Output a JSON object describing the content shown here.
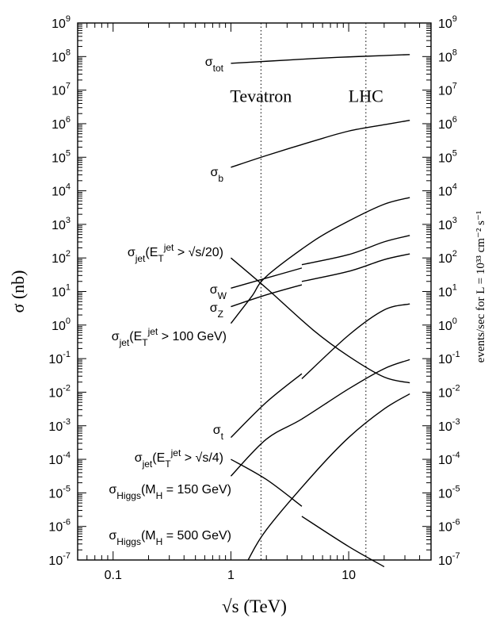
{
  "chart_data": {
    "type": "line",
    "xlabel": "√s   (TeV)",
    "ylabel_left": "σ  (nb)",
    "ylabel_right": "events/sec  for  L = 10³³ cm⁻² s⁻¹",
    "x_scale": "log",
    "y_scale": "log",
    "xlim": [
      0.05,
      50
    ],
    "ylim_exponent": [
      -7,
      9
    ],
    "x_ticks": [
      {
        "value": 0.1,
        "label": "0.1"
      },
      {
        "value": 1,
        "label": "1"
      },
      {
        "value": 10,
        "label": "10"
      }
    ],
    "y_ticks": [
      {
        "exp": 9,
        "base": "10",
        "sup": "9"
      },
      {
        "exp": 8,
        "base": "10",
        "sup": "8"
      },
      {
        "exp": 7,
        "base": "10",
        "sup": "7"
      },
      {
        "exp": 6,
        "base": "10",
        "sup": "6"
      },
      {
        "exp": 5,
        "base": "10",
        "sup": "5"
      },
      {
        "exp": 4,
        "base": "10",
        "sup": "4"
      },
      {
        "exp": 3,
        "base": "10",
        "sup": "3"
      },
      {
        "exp": 2,
        "base": "10",
        "sup": "2"
      },
      {
        "exp": 1,
        "base": "10",
        "sup": "1"
      },
      {
        "exp": 0,
        "base": "10",
        "sup": "0"
      },
      {
        "exp": -1,
        "base": "10",
        "sup": "-1"
      },
      {
        "exp": -2,
        "base": "10",
        "sup": "-2"
      },
      {
        "exp": -3,
        "base": "10",
        "sup": "-3"
      },
      {
        "exp": -4,
        "base": "10",
        "sup": "-4"
      },
      {
        "exp": -5,
        "base": "10",
        "sup": "-5"
      },
      {
        "exp": -6,
        "base": "10",
        "sup": "-6"
      },
      {
        "exp": -7,
        "base": "10",
        "sup": "-7"
      }
    ],
    "vlines": [
      {
        "x": 1.8,
        "label": "Tevatron"
      },
      {
        "x": 14,
        "label": "LHC"
      }
    ],
    "series": [
      {
        "label": [
          {
            "t": "σ"
          },
          {
            "t": "tot",
            "sub": true
          }
        ],
        "segments": [
          [
            [
              1,
              7.8
            ],
            [
              2,
              7.86
            ],
            [
              5,
              7.94
            ],
            [
              10,
              7.99
            ],
            [
              20,
              8.03
            ],
            [
              33,
              8.06
            ]
          ]
        ]
      },
      {
        "label": [
          {
            "t": "σ"
          },
          {
            "t": "b",
            "sub": true
          }
        ],
        "segments": [
          [
            [
              1,
              4.7
            ],
            [
              2,
              5.05
            ],
            [
              5,
              5.48
            ],
            [
              10,
              5.78
            ],
            [
              20,
              5.97
            ],
            [
              33,
              6.1
            ]
          ]
        ]
      },
      {
        "label": [
          {
            "t": "σ"
          },
          {
            "t": "jet",
            "sub": true
          },
          {
            "t": "(E"
          },
          {
            "t": "T",
            "sub": true
          },
          {
            "t": "jet",
            "sup": true
          },
          {
            "t": " > √s/20)"
          }
        ],
        "segments": [
          [
            [
              1,
              2.0
            ],
            [
              2,
              1.1
            ],
            [
              5,
              -0.15
            ],
            [
              10,
              -0.93
            ],
            [
              20,
              -1.55
            ],
            [
              33,
              -1.72
            ]
          ]
        ]
      },
      {
        "label": [
          {
            "t": "σ"
          },
          {
            "t": "W",
            "sub": true
          }
        ],
        "segments": [
          [
            [
              1,
              1.1
            ],
            [
              2,
              1.4
            ],
            [
              4,
              1.7
            ]
          ],
          [
            [
              4,
              1.8
            ],
            [
              10,
              2.1
            ],
            [
              20,
              2.48
            ],
            [
              33,
              2.67
            ]
          ]
        ]
      },
      {
        "label": [
          {
            "t": "σ"
          },
          {
            "t": "Z",
            "sub": true
          }
        ],
        "segments": [
          [
            [
              1,
              0.55
            ],
            [
              2,
              0.9
            ],
            [
              4,
              1.2
            ]
          ],
          [
            [
              4,
              1.3
            ],
            [
              10,
              1.6
            ],
            [
              20,
              1.95
            ],
            [
              33,
              2.12
            ]
          ]
        ]
      },
      {
        "label": [
          {
            "t": "σ"
          },
          {
            "t": "jet",
            "sub": true
          },
          {
            "t": "(E"
          },
          {
            "t": "T",
            "sub": true
          },
          {
            "t": "jet",
            "sup": true
          },
          {
            "t": " > 100 GeV)"
          }
        ],
        "segments": [
          [
            [
              1,
              0.05
            ],
            [
              1.5,
              0.85
            ],
            [
              2,
              1.45
            ],
            [
              5,
              2.5
            ],
            [
              10,
              3.1
            ],
            [
              20,
              3.6
            ],
            [
              33,
              3.8
            ]
          ]
        ]
      },
      {
        "label": [
          {
            "t": "σ"
          },
          {
            "t": "t",
            "sub": true
          }
        ],
        "segments": [
          [
            [
              1,
              -3.35
            ],
            [
              2,
              -2.3
            ],
            [
              4,
              -1.45
            ]
          ],
          [
            [
              4,
              -1.6
            ],
            [
              10,
              -0.3
            ],
            [
              20,
              0.45
            ],
            [
              33,
              0.63
            ]
          ]
        ]
      },
      {
        "label": [
          {
            "t": "σ"
          },
          {
            "t": "jet",
            "sub": true
          },
          {
            "t": "(E"
          },
          {
            "t": "T",
            "sub": true
          },
          {
            "t": "jet",
            "sup": true
          },
          {
            "t": " > √s/4)"
          }
        ],
        "segments": [
          [
            [
              1,
              -4.0
            ],
            [
              2,
              -4.6
            ],
            [
              4,
              -5.4
            ]
          ],
          [
            [
              4,
              -5.7
            ],
            [
              10,
              -6.6
            ],
            [
              20,
              -7.2
            ]
          ]
        ]
      },
      {
        "label": [
          {
            "t": "σ"
          },
          {
            "t": "Higgs",
            "sub": true
          },
          {
            "t": "(M"
          },
          {
            "t": "H",
            "sub": true
          },
          {
            "t": " = 150 GeV)"
          }
        ],
        "segments": [
          [
            [
              1,
              -4.5
            ],
            [
              2,
              -3.4
            ],
            [
              4,
              -2.8
            ],
            [
              10,
              -1.9
            ],
            [
              20,
              -1.3
            ],
            [
              33,
              -1.03
            ]
          ]
        ]
      },
      {
        "label": [
          {
            "t": "σ"
          },
          {
            "t": "Higgs",
            "sub": true
          },
          {
            "t": "(M"
          },
          {
            "t": "H",
            "sub": true
          },
          {
            "t": " = 500 GeV)"
          }
        ],
        "segments": [
          [
            [
              1.4,
              -7.0
            ],
            [
              2,
              -6.1
            ],
            [
              5,
              -4.45
            ],
            [
              10,
              -3.35
            ],
            [
              20,
              -2.5
            ],
            [
              33,
              -2.05
            ]
          ]
        ]
      }
    ]
  }
}
